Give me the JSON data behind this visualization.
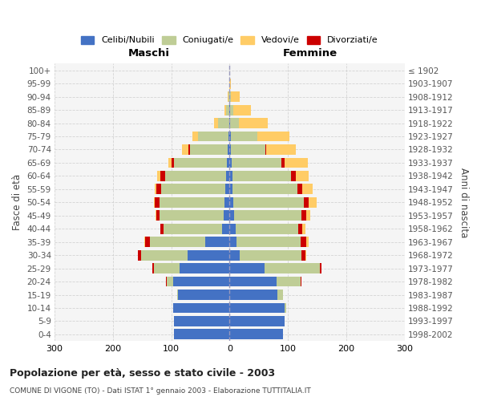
{
  "age_groups": [
    "0-4",
    "5-9",
    "10-14",
    "15-19",
    "20-24",
    "25-29",
    "30-34",
    "35-39",
    "40-44",
    "45-49",
    "50-54",
    "55-59",
    "60-64",
    "65-69",
    "70-74",
    "75-79",
    "80-84",
    "85-89",
    "90-94",
    "95-99",
    "100+"
  ],
  "birth_years": [
    "1998-2002",
    "1993-1997",
    "1988-1992",
    "1983-1987",
    "1978-1982",
    "1973-1977",
    "1968-1972",
    "1963-1967",
    "1958-1962",
    "1953-1957",
    "1948-1952",
    "1943-1947",
    "1938-1942",
    "1933-1937",
    "1928-1932",
    "1923-1927",
    "1918-1922",
    "1913-1917",
    "1908-1912",
    "1903-1907",
    "≤ 1902"
  ],
  "males": {
    "celibe": [
      95,
      95,
      96,
      88,
      96,
      86,
      72,
      42,
      13,
      10,
      8,
      7,
      6,
      5,
      3,
      2,
      1,
      1,
      0,
      0,
      1
    ],
    "coniugato": [
      0,
      0,
      1,
      2,
      12,
      44,
      80,
      95,
      100,
      110,
      112,
      110,
      105,
      90,
      65,
      52,
      18,
      5,
      2,
      1,
      0
    ],
    "vedovo": [
      0,
      0,
      0,
      0,
      0,
      0,
      0,
      1,
      1,
      2,
      2,
      3,
      5,
      5,
      12,
      10,
      8,
      3,
      1,
      0,
      0
    ],
    "divorziato": [
      0,
      0,
      0,
      0,
      1,
      2,
      5,
      8,
      5,
      5,
      8,
      8,
      8,
      5,
      2,
      0,
      0,
      0,
      0,
      0,
      0
    ]
  },
  "females": {
    "nubile": [
      92,
      95,
      95,
      82,
      80,
      60,
      18,
      12,
      10,
      8,
      7,
      5,
      5,
      4,
      3,
      2,
      1,
      1,
      0,
      0,
      0
    ],
    "coniugata": [
      0,
      0,
      2,
      10,
      42,
      95,
      105,
      110,
      108,
      115,
      120,
      112,
      100,
      85,
      58,
      45,
      15,
      5,
      2,
      0,
      0
    ],
    "vedova": [
      0,
      0,
      0,
      0,
      0,
      1,
      1,
      3,
      5,
      8,
      15,
      18,
      22,
      40,
      50,
      55,
      50,
      30,
      15,
      2,
      0
    ],
    "divorziata": [
      0,
      0,
      0,
      0,
      1,
      2,
      7,
      10,
      7,
      8,
      8,
      8,
      8,
      5,
      2,
      0,
      0,
      0,
      0,
      0,
      0
    ]
  },
  "colors": {
    "celibe": "#4472C4",
    "coniugato": "#BFCD96",
    "vedovo": "#FFCC66",
    "divorziato": "#CC0000"
  },
  "xlim": 300,
  "title": "Popolazione per età, sesso e stato civile - 2003",
  "subtitle": "COMUNE DI VIGONE (TO) - Dati ISTAT 1° gennaio 2003 - Elaborazione TUTTITALIA.IT",
  "maschi_label": "Maschi",
  "femmine_label": "Femmine",
  "ylabel_left": "Fasce di età",
  "ylabel_right": "Anni di nascita",
  "legend_labels": [
    "Celibi/Nubili",
    "Coniugati/e",
    "Vedovi/e",
    "Divorziati/e"
  ],
  "background_color": "#ffffff",
  "plot_bg_color": "#f5f5f5",
  "grid_color": "#cccccc"
}
